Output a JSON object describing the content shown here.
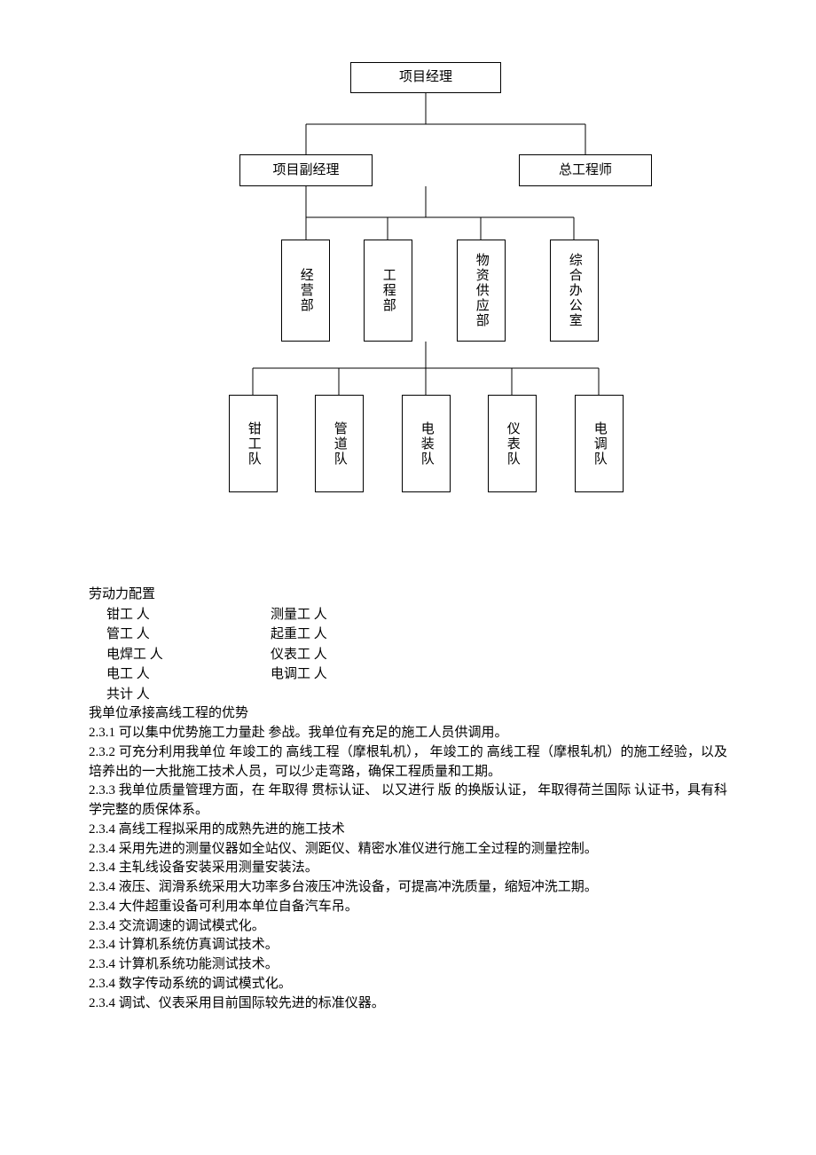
{
  "orgchart": {
    "level1": {
      "label": "项目经理"
    },
    "level2": [
      {
        "label": "项目副经理"
      },
      {
        "label": "总工程师"
      }
    ],
    "level3": [
      {
        "label": "经营部"
      },
      {
        "label": "工程部"
      },
      {
        "label": "物资供应部"
      },
      {
        "label": "综合办公室"
      }
    ],
    "level4": [
      {
        "label": "钳工队"
      },
      {
        "label": "管道队"
      },
      {
        "label": "电装队"
      },
      {
        "label": "仪表队"
      },
      {
        "label": "电调队"
      }
    ],
    "style": {
      "border_color": "#000000",
      "font_size": 15,
      "line_color": "#000000"
    }
  },
  "labor": {
    "title": "劳动力配置",
    "rows": [
      {
        "left": "钳工  人",
        "right": "测量工  人"
      },
      {
        "left": "管工  人",
        "right": "起重工  人"
      },
      {
        "left": "电焊工  人",
        "right": "仪表工  人"
      },
      {
        "left": "电工  人",
        "right": "电调工  人"
      },
      {
        "left": "共计  人",
        "right": ""
      }
    ]
  },
  "advantages": {
    "title": "我单位承接高线工程的优势",
    "items": [
      "2.3.1  可以集中优势施工力量赴  参战。我单位有充足的施工人员供调用。",
      "2.3.2  可充分利用我单位  年竣工的  高线工程（摩根轧机），  年竣工的  高线工程（摩根轧机）的施工经验，以及培养出的一大批施工技术人员，可以少走弯路，确保工程质量和工期。",
      "2.3.3  我单位质量管理方面，在  年取得  贯标认证、  以又进行  版  的换版认证，    年取得荷兰国际  认证书，具有科学完整的质保体系。",
      "2.3.4  高线工程拟采用的成熟先进的施工技术",
      "2.3.4  采用先进的测量仪器如全站仪、测距仪、精密水准仪进行施工全过程的测量控制。",
      "2.3.4  主轧线设备安装采用测量安装法。",
      "2.3.4  液压、润滑系统采用大功率多台液压冲洗设备，可提高冲洗质量，缩短冲洗工期。",
      "2.3.4  大件超重设备可利用本单位自备汽车吊。",
      "2.3.4  交流调速的调试模式化。",
      "2.3.4  计算机系统仿真调试技术。",
      "2.3.4  计算机系统功能测试技术。",
      "2.3.4  数字传动系统的调试模式化。",
      "2.3.4  调试、仪表采用目前国际较先进的标准仪器。"
    ]
  }
}
